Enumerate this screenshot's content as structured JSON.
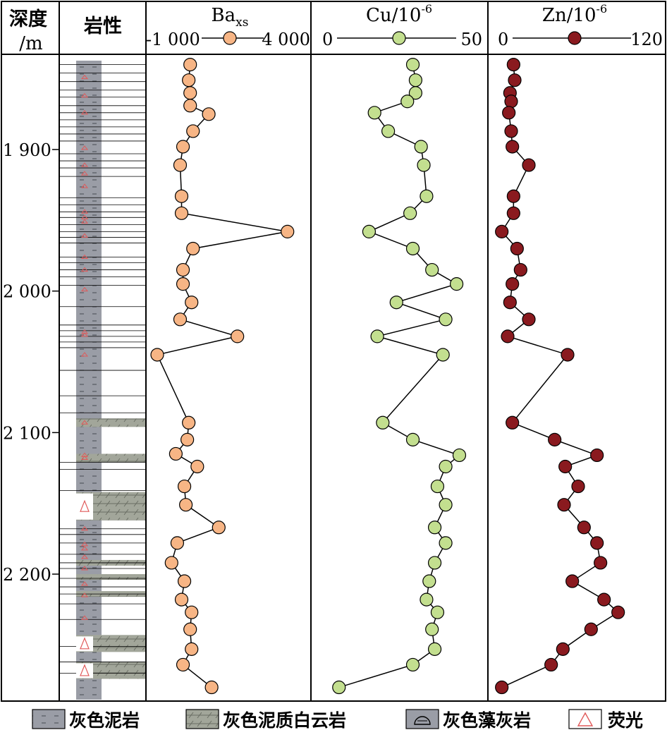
{
  "chart_data": {
    "type": "line",
    "orientation": "depth-log",
    "depth_axis": {
      "label_line1": "深度",
      "label_line2": "/m",
      "range": [
        1835,
        2280
      ],
      "ticks": [
        1900,
        2000,
        2100,
        2200
      ],
      "tick_labels": [
        "1 900",
        "2 000",
        "2 100",
        "2 200"
      ]
    },
    "lithology": {
      "label": "岩性",
      "column_color": "#9a9da6",
      "fluorescence_color": "#e05a5a",
      "thin_bed_depths": [
        1840,
        1846,
        1852,
        1858,
        1863,
        1869,
        1874,
        1879,
        1884,
        1889,
        1894,
        1903,
        1908,
        1913,
        1919,
        1934,
        1939,
        1944,
        1948,
        1953,
        1958,
        1962,
        1966,
        1976,
        1980,
        1985,
        1990,
        1996,
        2011,
        2024,
        2028,
        2032,
        2036,
        2040,
        2056,
        2074,
        2086,
        2121,
        2126,
        2141,
        2168,
        2172,
        2178,
        2186,
        2192,
        2196,
        2203,
        2209,
        2214,
        2221,
        2232,
        2251,
        2262,
        2270
      ],
      "dolomite_beds": [
        [
          2090,
          2096
        ],
        [
          2115,
          2121
        ],
        [
          2142,
          2162
        ],
        [
          2190,
          2194
        ],
        [
          2200,
          2204
        ],
        [
          2212,
          2216
        ],
        [
          2243,
          2255
        ],
        [
          2262,
          2274
        ]
      ],
      "fluorescence_depths": [
        1849,
        1862,
        1874,
        1899,
        1911,
        1917,
        1926,
        1944,
        1948,
        1951,
        1961,
        1976,
        1985,
        1999,
        2029,
        2031,
        2045,
        2093,
        2116,
        2118,
        2150,
        2158,
        2168,
        2179,
        2182,
        2188,
        2196,
        2207,
        2215,
        2231,
        2251,
        2266
      ]
    },
    "series": [
      {
        "name": "Ba",
        "name_sub": "xs",
        "x_min_label": "-1 000",
        "x_max_label": "4 000",
        "xlim": [
          -1000,
          4000
        ],
        "marker_color": "#f7b585",
        "values": [
          [
            1840,
            150
          ],
          [
            1851,
            100
          ],
          [
            1860,
            150
          ],
          [
            1869,
            150
          ],
          [
            1875,
            800
          ],
          [
            1887,
            250
          ],
          [
            1898,
            -100
          ],
          [
            1911,
            -200
          ],
          [
            1933,
            -150
          ],
          [
            1945,
            -150
          ],
          [
            1958,
            3550
          ],
          [
            1970,
            250
          ],
          [
            1985,
            -100
          ],
          [
            1995,
            -100
          ],
          [
            2008,
            200
          ],
          [
            2020,
            -200
          ],
          [
            2032,
            1800
          ],
          [
            2045,
            -1000
          ],
          [
            2093,
            100
          ],
          [
            2105,
            50
          ],
          [
            2115,
            -350
          ],
          [
            2124,
            400
          ],
          [
            2138,
            -50
          ],
          [
            2151,
            0
          ],
          [
            2167,
            1150
          ],
          [
            2178,
            -300
          ],
          [
            2192,
            -500
          ],
          [
            2205,
            -50
          ],
          [
            2218,
            -150
          ],
          [
            2227,
            200
          ],
          [
            2239,
            150
          ],
          [
            2253,
            200
          ],
          [
            2264,
            -100
          ],
          [
            2280,
            900
          ]
        ]
      },
      {
        "name": "Cu",
        "name_sup": "/10",
        "exp": "-6",
        "x_min_label": "0",
        "x_max_label": "50",
        "xlim": [
          0,
          50
        ],
        "marker_color": "#c3df8f",
        "values": [
          [
            1840,
            29
          ],
          [
            1851,
            30
          ],
          [
            1860,
            30
          ],
          [
            1866,
            27
          ],
          [
            1874,
            15
          ],
          [
            1887,
            20
          ],
          [
            1898,
            32
          ],
          [
            1911,
            33
          ],
          [
            1933,
            34
          ],
          [
            1945,
            28
          ],
          [
            1958,
            13
          ],
          [
            1970,
            29
          ],
          [
            1985,
            36
          ],
          [
            1995,
            45
          ],
          [
            2008,
            23
          ],
          [
            2020,
            41
          ],
          [
            2032,
            16
          ],
          [
            2045,
            40
          ],
          [
            2093,
            18
          ],
          [
            2105,
            29
          ],
          [
            2116,
            46
          ],
          [
            2124,
            41
          ],
          [
            2138,
            38
          ],
          [
            2151,
            41
          ],
          [
            2167,
            37
          ],
          [
            2178,
            41
          ],
          [
            2192,
            37
          ],
          [
            2205,
            35
          ],
          [
            2218,
            34
          ],
          [
            2227,
            38
          ],
          [
            2239,
            36
          ],
          [
            2253,
            37
          ],
          [
            2264,
            29
          ],
          [
            2280,
            2
          ]
        ]
      },
      {
        "name": "Zn",
        "name_sup": "/10",
        "exp": "-6",
        "x_min_label": "0",
        "x_max_label": "120",
        "xlim": [
          0,
          120
        ],
        "marker_color": "#8a1a1f",
        "values": [
          [
            1840,
            11
          ],
          [
            1851,
            12
          ],
          [
            1860,
            8
          ],
          [
            1866,
            9
          ],
          [
            1874,
            7
          ],
          [
            1887,
            9
          ],
          [
            1898,
            10
          ],
          [
            1911,
            24
          ],
          [
            1933,
            11
          ],
          [
            1945,
            11
          ],
          [
            1958,
            1
          ],
          [
            1970,
            14
          ],
          [
            1985,
            17
          ],
          [
            1995,
            10
          ],
          [
            2008,
            8
          ],
          [
            2020,
            24
          ],
          [
            2032,
            6
          ],
          [
            2045,
            57
          ],
          [
            2093,
            10
          ],
          [
            2105,
            46
          ],
          [
            2116,
            82
          ],
          [
            2124,
            55
          ],
          [
            2138,
            66
          ],
          [
            2151,
            54
          ],
          [
            2167,
            71
          ],
          [
            2178,
            82
          ],
          [
            2192,
            85
          ],
          [
            2205,
            61
          ],
          [
            2218,
            88
          ],
          [
            2227,
            100
          ],
          [
            2239,
            77
          ],
          [
            2253,
            53
          ],
          [
            2264,
            43
          ],
          [
            2280,
            1
          ]
        ]
      }
    ],
    "legend": [
      {
        "id": "mudstone",
        "label": "灰色泥岩"
      },
      {
        "id": "dolomite",
        "label": "灰色泥质白云岩"
      },
      {
        "id": "algal",
        "label": "灰色藻灰岩"
      },
      {
        "id": "fluorescence",
        "label": "荧光"
      }
    ]
  }
}
